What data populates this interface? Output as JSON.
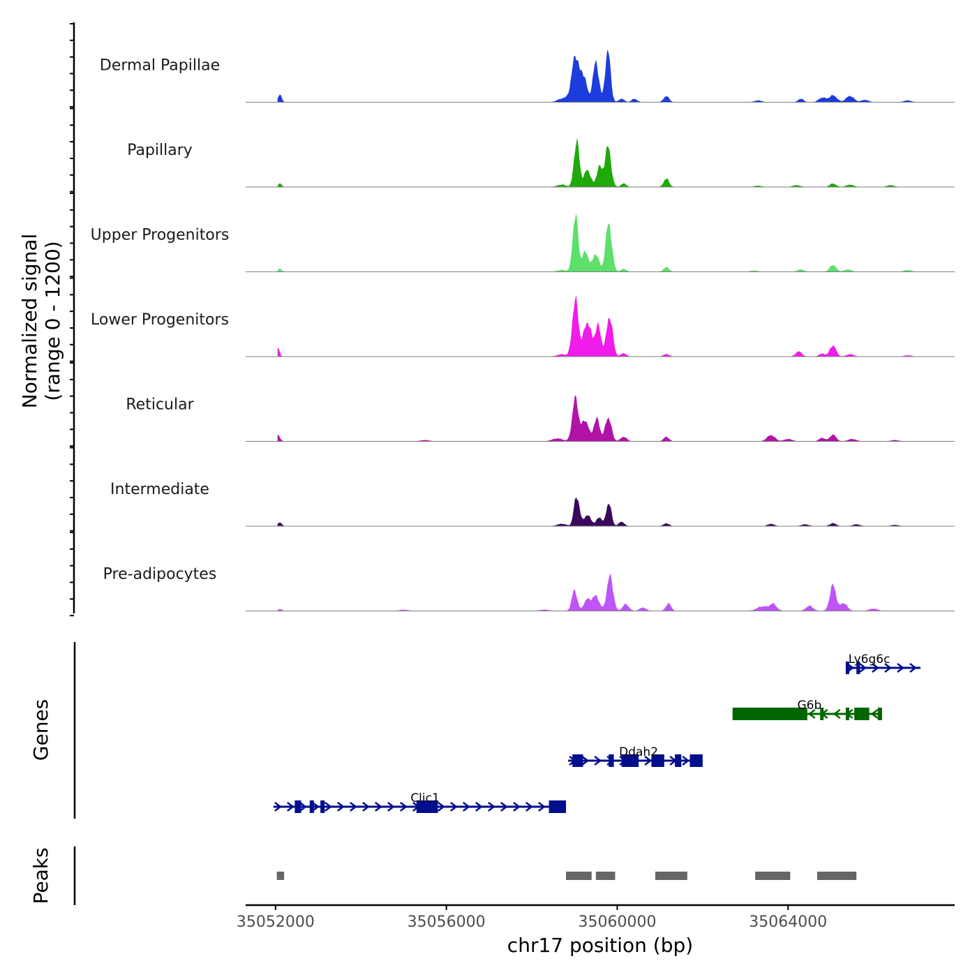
{
  "chart_data": {
    "type": "area",
    "title": "",
    "chromosome": "chr17",
    "xlabel": "chr17 position (bp)",
    "ylabel": "Normalized signal",
    "ylabel_sub": "(range 0 - 1200)",
    "xlim": [
      35051300,
      35067900
    ],
    "ylim": [
      0,
      1200
    ],
    "xticks": [
      35052000,
      35056000,
      35060000,
      35064000
    ],
    "xtick_labels": [
      "35052000",
      "35056000",
      "35060000",
      "35064000"
    ],
    "series": [
      {
        "name": "Dermal Papillae",
        "color": "#1c3ddb",
        "peaks": [
          [
            35052100,
            140,
            40
          ],
          [
            35058700,
            60,
            100
          ],
          [
            35058900,
            120,
            80
          ],
          [
            35059020,
            780,
            70
          ],
          [
            35059200,
            500,
            80
          ],
          [
            35059500,
            700,
            70
          ],
          [
            35059780,
            920,
            60
          ],
          [
            35060100,
            60,
            60
          ],
          [
            35060400,
            60,
            60
          ],
          [
            35061150,
            110,
            60
          ],
          [
            35063300,
            30,
            80
          ],
          [
            35064300,
            60,
            60
          ],
          [
            35064800,
            80,
            80
          ],
          [
            35065050,
            120,
            90
          ],
          [
            35065450,
            110,
            90
          ],
          [
            35065800,
            40,
            80
          ],
          [
            35066800,
            30,
            80
          ]
        ]
      },
      {
        "name": "Papillary",
        "color": "#1fa90b",
        "peaks": [
          [
            35052100,
            60,
            40
          ],
          [
            35058700,
            40,
            100
          ],
          [
            35059050,
            820,
            60
          ],
          [
            35059300,
            300,
            80
          ],
          [
            35059580,
            360,
            60
          ],
          [
            35059780,
            720,
            70
          ],
          [
            35060150,
            60,
            60
          ],
          [
            35061150,
            150,
            60
          ],
          [
            35063300,
            20,
            80
          ],
          [
            35064200,
            30,
            80
          ],
          [
            35065050,
            60,
            70
          ],
          [
            35065450,
            40,
            80
          ],
          [
            35066400,
            30,
            80
          ]
        ]
      },
      {
        "name": "Upper Progenitors",
        "color": "#5ddf6a",
        "peaks": [
          [
            35052100,
            50,
            40
          ],
          [
            35058700,
            30,
            100
          ],
          [
            35059020,
            1020,
            60
          ],
          [
            35059250,
            350,
            80
          ],
          [
            35059500,
            320,
            70
          ],
          [
            35059800,
            860,
            70
          ],
          [
            35060150,
            50,
            60
          ],
          [
            35061150,
            80,
            60
          ],
          [
            35063200,
            20,
            80
          ],
          [
            35064300,
            40,
            70
          ],
          [
            35065050,
            120,
            70
          ],
          [
            35065400,
            40,
            80
          ],
          [
            35066800,
            30,
            80
          ]
        ]
      },
      {
        "name": "Lower Progenitors",
        "color": "#f01cea",
        "peaks": [
          [
            35052050,
            150,
            40
          ],
          [
            35058700,
            40,
            100
          ],
          [
            35059020,
            1000,
            70
          ],
          [
            35059300,
            620,
            90
          ],
          [
            35059550,
            540,
            70
          ],
          [
            35059820,
            720,
            70
          ],
          [
            35060150,
            60,
            60
          ],
          [
            35061150,
            40,
            70
          ],
          [
            35064250,
            90,
            70
          ],
          [
            35064800,
            50,
            70
          ],
          [
            35065050,
            200,
            70
          ],
          [
            35065450,
            40,
            80
          ],
          [
            35066800,
            20,
            80
          ]
        ]
      },
      {
        "name": "Reticular",
        "color": "#b213a7",
        "peaks": [
          [
            35052050,
            110,
            50
          ],
          [
            35055500,
            20,
            100
          ],
          [
            35058600,
            50,
            120
          ],
          [
            35059020,
            760,
            70
          ],
          [
            35059250,
            380,
            80
          ],
          [
            35059520,
            400,
            70
          ],
          [
            35059790,
            430,
            70
          ],
          [
            35060150,
            80,
            70
          ],
          [
            35061150,
            80,
            60
          ],
          [
            35063600,
            110,
            90
          ],
          [
            35064000,
            40,
            90
          ],
          [
            35064800,
            60,
            70
          ],
          [
            35065050,
            120,
            70
          ],
          [
            35065500,
            40,
            90
          ],
          [
            35066500,
            20,
            90
          ]
        ]
      },
      {
        "name": "Intermediate",
        "color": "#3a085a",
        "peaks": [
          [
            35052100,
            70,
            40
          ],
          [
            35058700,
            40,
            100
          ],
          [
            35059050,
            540,
            60
          ],
          [
            35059300,
            190,
            90
          ],
          [
            35059580,
            160,
            60
          ],
          [
            35059800,
            410,
            60
          ],
          [
            35060100,
            80,
            60
          ],
          [
            35061150,
            50,
            60
          ],
          [
            35063600,
            40,
            70
          ],
          [
            35064400,
            30,
            80
          ],
          [
            35065050,
            50,
            70
          ],
          [
            35065600,
            30,
            80
          ],
          [
            35066500,
            20,
            80
          ]
        ]
      },
      {
        "name": "Pre-adipocytes",
        "color": "#bf54f8",
        "peaks": [
          [
            35052100,
            30,
            50
          ],
          [
            35055000,
            20,
            90
          ],
          [
            35058300,
            20,
            100
          ],
          [
            35059000,
            370,
            60
          ],
          [
            35059300,
            200,
            80
          ],
          [
            35059500,
            260,
            80
          ],
          [
            35059830,
            620,
            70
          ],
          [
            35060200,
            120,
            70
          ],
          [
            35060600,
            60,
            70
          ],
          [
            35061200,
            130,
            60
          ],
          [
            35063400,
            80,
            120
          ],
          [
            35063650,
            120,
            80
          ],
          [
            35064500,
            90,
            80
          ],
          [
            35065050,
            460,
            70
          ],
          [
            35065300,
            140,
            80
          ],
          [
            35066000,
            40,
            90
          ]
        ]
      }
    ],
    "genes": [
      {
        "name": "Ly6g6c",
        "strand": "+",
        "color": "#000e8c",
        "start": 35065350,
        "end": 35067100,
        "exons": [
          [
            35065350,
            35065420
          ],
          [
            35065600,
            35065660
          ]
        ]
      },
      {
        "name": "G6b",
        "strand": "-",
        "color": "#006600",
        "start": 35062700,
        "end": 35066200,
        "exons": [
          [
            35062700,
            35064450
          ],
          [
            35064750,
            35064800
          ],
          [
            35065350,
            35065400
          ],
          [
            35065550,
            35065900
          ],
          [
            35066100,
            35066200
          ]
        ]
      },
      {
        "name": "Ddah2",
        "strand": "+",
        "color": "#000e8c",
        "start": 35058850,
        "end": 35062000,
        "exons": [
          [
            35058950,
            35059200
          ],
          [
            35059800,
            35059920
          ],
          [
            35060100,
            35060500
          ],
          [
            35060800,
            35061100
          ],
          [
            35061350,
            35061500
          ],
          [
            35061700,
            35062000
          ]
        ]
      },
      {
        "name": "Clic1",
        "strand": "+",
        "color": "#000e8c",
        "start": 35051950,
        "end": 35058800,
        "exons": [
          [
            35052450,
            35052600
          ],
          [
            35052800,
            35052900
          ],
          [
            35053050,
            35053150
          ],
          [
            35055300,
            35055800
          ],
          [
            35058400,
            35058800
          ]
        ]
      }
    ],
    "peaks_track": {
      "color": "#666666",
      "regions": [
        [
          35052030,
          35052200
        ],
        [
          35058800,
          35059400
        ],
        [
          35059500,
          35059950
        ],
        [
          35060890,
          35061640
        ],
        [
          35063230,
          35064050
        ],
        [
          35064680,
          35065600
        ]
      ]
    },
    "tracks_label": {
      "genes": "Genes",
      "peaks": "Peaks"
    }
  }
}
